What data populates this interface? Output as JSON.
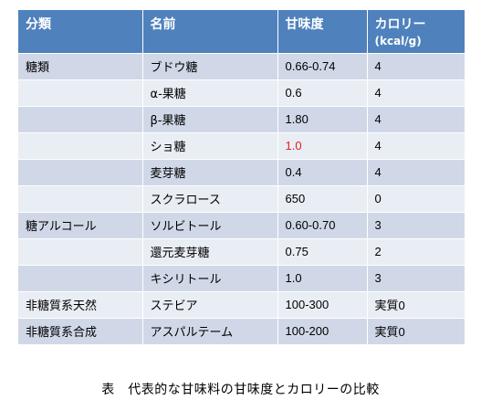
{
  "table": {
    "headers": {
      "category": "分類",
      "name": "名前",
      "sweetness": "甘味度",
      "calorie": "カロリー",
      "calorie_unit": "(kcal/g)"
    },
    "rows": [
      {
        "category": "糖類",
        "name": "ブドウ糖",
        "sweetness": "0.66-0.74",
        "calorie": "4"
      },
      {
        "category": "",
        "name": "α-果糖",
        "sweetness": "0.6",
        "calorie": "4"
      },
      {
        "category": "",
        "name": "β-果糖",
        "sweetness": "1.80",
        "calorie": "4"
      },
      {
        "category": "",
        "name": "ショ糖",
        "sweetness": "1.0",
        "calorie": "4"
      },
      {
        "category": "",
        "name": "麦芽糖",
        "sweetness": "0.4",
        "calorie": "4"
      },
      {
        "category": "",
        "name": "スクラロース",
        "sweetness": "650",
        "calorie": "0"
      },
      {
        "category": "糖アルコール",
        "name": "ソルビトール",
        "sweetness": "0.60-0.70",
        "calorie": "3"
      },
      {
        "category": "",
        "name": "還元麦芽糖",
        "sweetness": "0.75",
        "calorie": "2"
      },
      {
        "category": "",
        "name": "キシリトール",
        "sweetness": "1.0",
        "calorie": "3"
      },
      {
        "category": "非糖質系天然",
        "name": "ステビア",
        "sweetness": "100-300",
        "calorie": "実質0"
      },
      {
        "category": "非糖質系合成",
        "name": "アスパルテーム",
        "sweetness": "100-200",
        "calorie": "実質0"
      }
    ]
  },
  "caption": "表　代表的な甘味料の甘味度とカロリーの比較",
  "colors": {
    "header_bg": "#4f81bd",
    "row_dark": "#d0d8e8",
    "row_light": "#e9edf4",
    "highlight_text": "#e02020"
  }
}
